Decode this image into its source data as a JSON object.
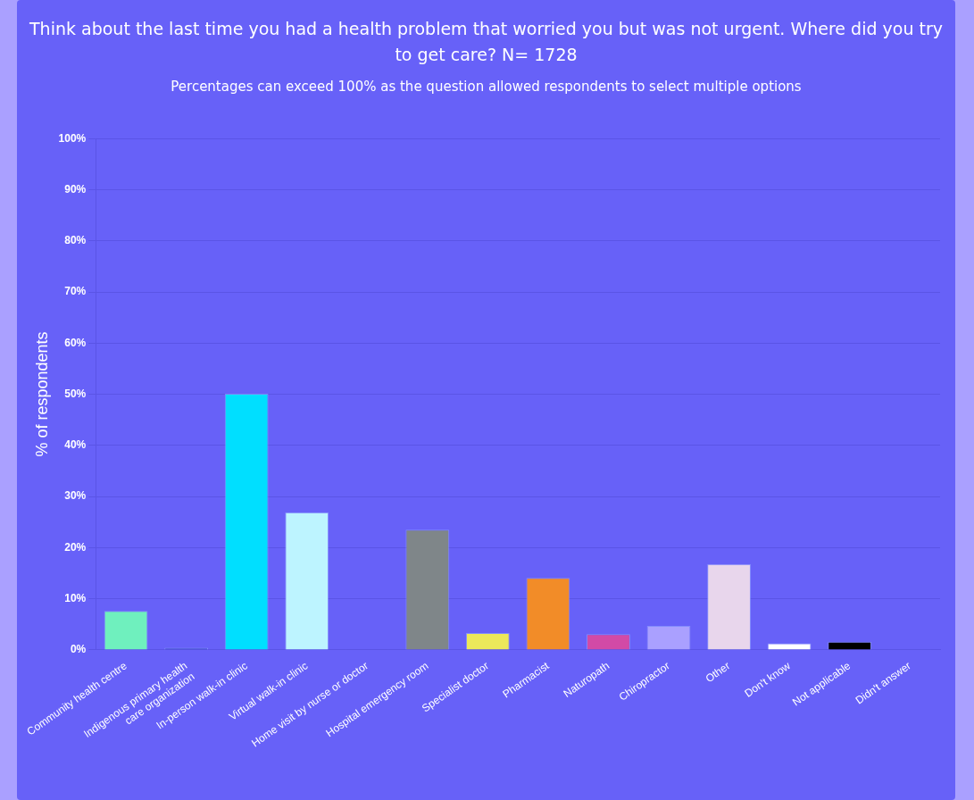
{
  "chart_data": {
    "type": "bar",
    "title": "Think about the last time you had a health problem that worried you but was not urgent. Where did you try to get care? N= 1728",
    "subtitle": "Percentages can exceed 100% as the question allowed respondents to select multiple options",
    "ylabel": "% of respondents",
    "categories": [
      "Community health centre",
      "Indigenous primary health\ncare organization",
      "In-person walk-in clinic",
      "Virtual walk-in clinic",
      "Home visit by nurse or doctor",
      "Hospital emergency room",
      "Specialist doctor",
      "Pharmacist",
      "Naturopath",
      "Chiropractor",
      "Other",
      "Don't know",
      "Not applicable",
      "Didn't answer"
    ],
    "values": [
      7.6,
      0.4,
      50.1,
      26.9,
      0.1,
      23.5,
      3.3,
      14.1,
      3.1,
      4.7,
      16.8,
      1.3,
      1.6,
      0.1
    ],
    "colors": [
      "#6ff0be",
      "#3f51c8",
      "#00dfff",
      "#bdf4ff",
      "#5a63d8",
      "#7f8689",
      "#ece85a",
      "#f28c28",
      "#d24aa6",
      "#aaa0ff",
      "#e8d6ec",
      "#ffffff",
      "#000000",
      "#5577f0"
    ],
    "ylim": [
      0,
      100
    ],
    "yticks": [
      {
        "value": 0,
        "label": "0%"
      },
      {
        "value": 10,
        "label": "10%"
      },
      {
        "value": 20,
        "label": "20%"
      },
      {
        "value": 30,
        "label": "30%"
      },
      {
        "value": 40,
        "label": "40%"
      },
      {
        "value": 50,
        "label": "50%"
      },
      {
        "value": 60,
        "label": "60%"
      },
      {
        "value": 70,
        "label": "70%"
      },
      {
        "value": 80,
        "label": "80%"
      },
      {
        "value": 90,
        "label": "90%"
      },
      {
        "value": 100,
        "label": "100%"
      }
    ],
    "grid": "y",
    "legend": false
  }
}
